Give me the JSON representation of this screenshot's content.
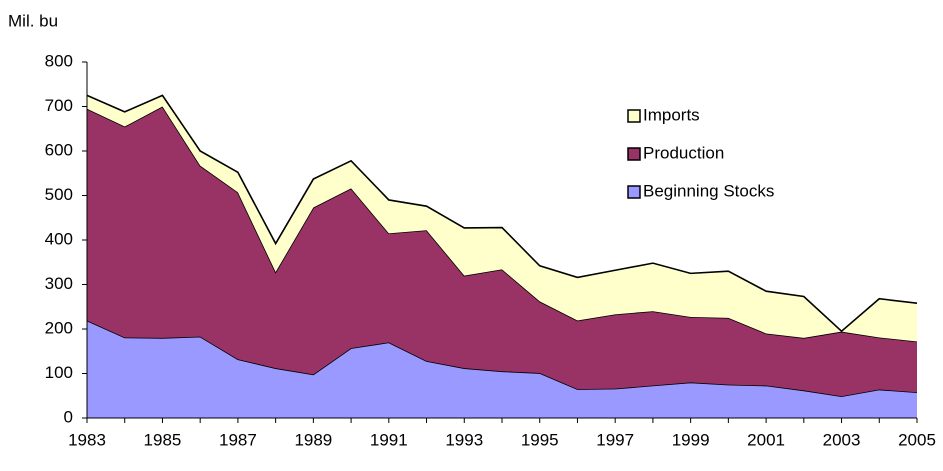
{
  "chart_data": {
    "type": "stacked_area",
    "y_label": "Mil. bu",
    "x": [
      1983,
      1984,
      1985,
      1986,
      1987,
      1988,
      1989,
      1990,
      1991,
      1992,
      1993,
      1994,
      1995,
      1996,
      1997,
      1998,
      1999,
      2000,
      2001,
      2002,
      2003,
      2004,
      2005
    ],
    "xlim": [
      1983,
      2005
    ],
    "xticks": [
      1983,
      1985,
      1987,
      1989,
      1991,
      1993,
      1995,
      1997,
      1999,
      2001,
      2003,
      2005
    ],
    "ylim": [
      0,
      800
    ],
    "yticks": [
      0,
      100,
      200,
      300,
      400,
      500,
      600,
      700,
      800
    ],
    "grid": false,
    "legend": "upper right",
    "series": [
      {
        "name": "Beginning Stocks",
        "color": "#9999ff",
        "values": [
          219,
          181,
          180,
          183,
          132,
          112,
          98,
          157,
          170,
          128,
          112,
          105,
          101,
          65,
          66,
          73,
          80,
          75,
          73,
          62,
          49,
          64,
          58
        ]
      },
      {
        "name": "Production",
        "color": "#993366",
        "values": [
          476,
          474,
          520,
          384,
          375,
          216,
          375,
          359,
          245,
          294,
          208,
          229,
          161,
          154,
          167,
          167,
          147,
          150,
          117,
          118,
          145,
          117,
          114
        ]
      },
      {
        "name": "Imports",
        "color": "#ffffcc",
        "values": [
          30,
          33,
          25,
          33,
          45,
          64,
          64,
          62,
          75,
          54,
          107,
          94,
          80,
          97,
          99,
          108,
          98,
          105,
          95,
          93,
          1,
          87,
          86
        ]
      }
    ]
  }
}
